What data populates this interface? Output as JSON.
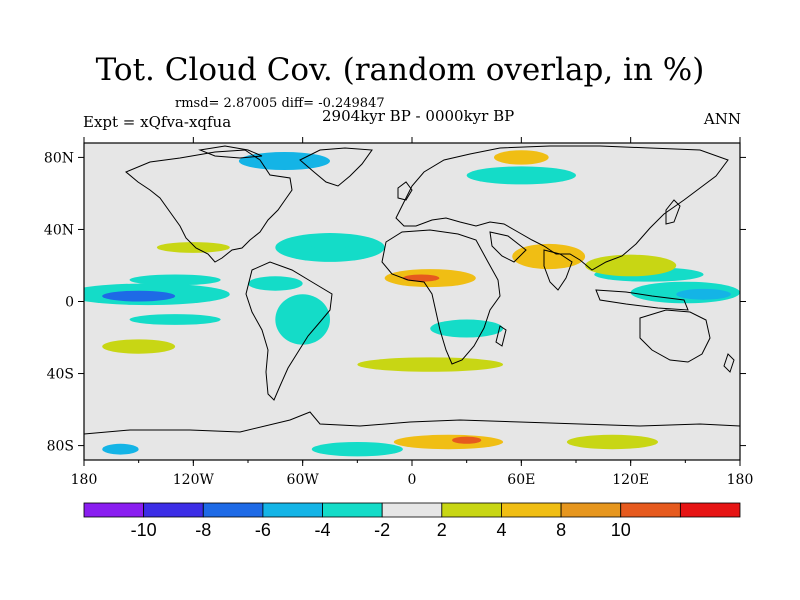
{
  "map": {
    "title": "Tot. Cloud Cov. (random overlap, in %)",
    "stats": "rmsd= 2.87005 diff= -0.249847",
    "experiment": "Expt = xQfva-xqfua",
    "period": "2904kyr BP - 0000kyr BP",
    "season": "ANN",
    "lon_ticks": [
      {
        "lon": -180,
        "label": "180"
      },
      {
        "lon": -120,
        "label": "120W"
      },
      {
        "lon": -60,
        "label": "60W"
      },
      {
        "lon": 0,
        "label": "0"
      },
      {
        "lon": 60,
        "label": "60E"
      },
      {
        "lon": 120,
        "label": "120E"
      },
      {
        "lon": 180,
        "label": "180"
      }
    ],
    "lat_ticks": [
      {
        "lat": 80,
        "label": "80N"
      },
      {
        "lat": 40,
        "label": "40N"
      },
      {
        "lat": 0,
        "label": "0"
      },
      {
        "lat": -40,
        "label": "40S"
      },
      {
        "lat": -80,
        "label": "80S"
      }
    ],
    "lat_range": [
      -90,
      90
    ],
    "lon_range": [
      -180,
      180
    ]
  },
  "colorbar": {
    "colors": [
      "#8a1ef0",
      "#3c2de6",
      "#1e6ae6",
      "#14b4e6",
      "#14dcc8",
      "#e6e6e6",
      "#c8d614",
      "#f0be14",
      "#e6961e",
      "#e65a1e",
      "#e61414"
    ],
    "labels": [
      {
        "boundary": 1,
        "text": "-10"
      },
      {
        "boundary": 2,
        "text": "-8"
      },
      {
        "boundary": 3,
        "text": "-6"
      },
      {
        "boundary": 4,
        "text": "-4"
      },
      {
        "boundary": 5,
        "text": "-2"
      },
      {
        "boundary": 6,
        "text": "2"
      },
      {
        "boundary": 7,
        "text": "4"
      },
      {
        "boundary": 8,
        "text": "8"
      },
      {
        "boundary": 9,
        "text": "10"
      }
    ]
  },
  "anomaly_fields": [
    {
      "level": -4,
      "lon": -145,
      "lat": 4,
      "rx": 45,
      "ry": 6
    },
    {
      "level": -8,
      "lon": -150,
      "lat": 3,
      "rx": 20,
      "ry": 3
    },
    {
      "level": -2,
      "lon": -130,
      "lat": 12,
      "rx": 25,
      "ry": 3
    },
    {
      "level": -2,
      "lon": -130,
      "lat": -10,
      "rx": 25,
      "ry": 3
    },
    {
      "level": -2,
      "lon": -45,
      "lat": 30,
      "rx": 30,
      "ry": 8
    },
    {
      "level": -4,
      "lon": -45,
      "lat": 32,
      "rx": 12,
      "ry": 3
    },
    {
      "level": -2,
      "lon": -75,
      "lat": 10,
      "rx": 15,
      "ry": 4
    },
    {
      "level": -2,
      "lon": -60,
      "lat": -10,
      "rx": 15,
      "ry": 14
    },
    {
      "level": -2,
      "lon": 30,
      "lat": -15,
      "rx": 20,
      "ry": 5
    },
    {
      "level": -4,
      "lon": 150,
      "lat": 5,
      "rx": 30,
      "ry": 6
    },
    {
      "level": -6,
      "lon": 160,
      "lat": 4,
      "rx": 15,
      "ry": 3
    },
    {
      "level": -2,
      "lon": 130,
      "lat": 15,
      "rx": 30,
      "ry": 4
    },
    {
      "level": -6,
      "lon": -70,
      "lat": 78,
      "rx": 25,
      "ry": 5
    },
    {
      "level": -2,
      "lon": 60,
      "lat": 70,
      "rx": 30,
      "ry": 5
    },
    {
      "level": -4,
      "lon": -30,
      "lat": -82,
      "rx": 25,
      "ry": 4
    },
    {
      "level": -6,
      "lon": -160,
      "lat": -82,
      "rx": 10,
      "ry": 3
    },
    {
      "level": 4,
      "lon": 10,
      "lat": 13,
      "rx": 25,
      "ry": 5
    },
    {
      "level": 8,
      "lon": 5,
      "lat": 13,
      "rx": 10,
      "ry": 2
    },
    {
      "level": 4,
      "lon": 75,
      "lat": 25,
      "rx": 20,
      "ry": 7
    },
    {
      "level": 2,
      "lon": 120,
      "lat": 20,
      "rx": 25,
      "ry": 6
    },
    {
      "level": 2,
      "lon": 10,
      "lat": -35,
      "rx": 40,
      "ry": 4
    },
    {
      "level": 2,
      "lon": -150,
      "lat": -25,
      "rx": 20,
      "ry": 4
    },
    {
      "level": 2,
      "lon": -120,
      "lat": 30,
      "rx": 20,
      "ry": 3
    },
    {
      "level": 4,
      "lon": 20,
      "lat": -78,
      "rx": 30,
      "ry": 4
    },
    {
      "level": 8,
      "lon": 30,
      "lat": -77,
      "rx": 8,
      "ry": 2
    },
    {
      "level": 2,
      "lon": 110,
      "lat": -78,
      "rx": 25,
      "ry": 4
    },
    {
      "level": 4,
      "lon": 60,
      "lat": 80,
      "rx": 15,
      "ry": 4
    }
  ]
}
